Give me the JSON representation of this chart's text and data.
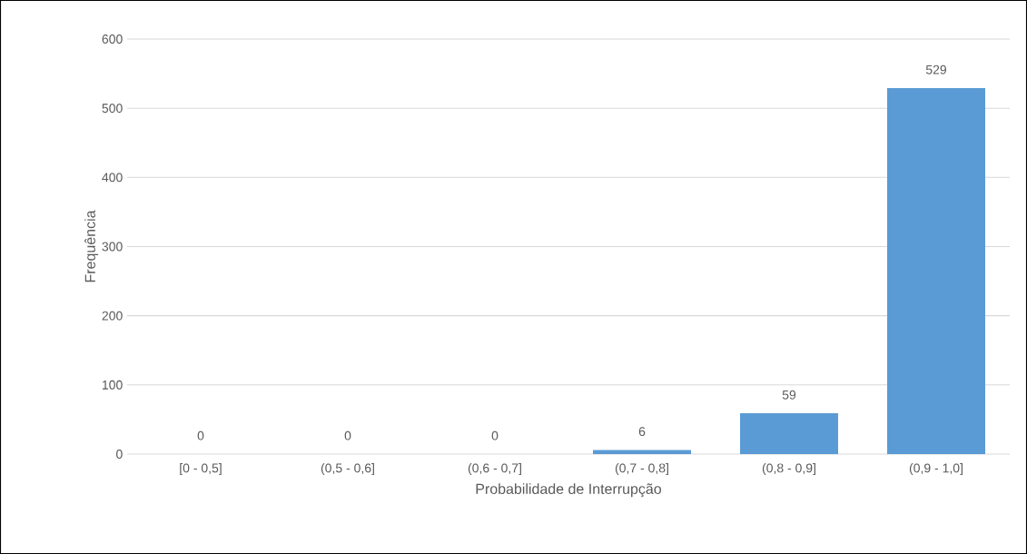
{
  "chart_data": {
    "type": "bar",
    "xlabel": "Probabilidade de Interrupção",
    "ylabel": "Frequência",
    "categories": [
      "[0 - 0,5]",
      "(0,5 - 0,6]",
      "(0,6 - 0,7]",
      "(0,7 - 0,8]",
      "(0,8 - 0,9]",
      "(0,9 - 1,0]"
    ],
    "values": [
      0,
      0,
      0,
      6,
      59,
      529
    ],
    "color": "#5b9bd5",
    "ylim": [
      0,
      600
    ],
    "yticks": [
      0,
      100,
      200,
      300,
      400,
      500,
      600
    ],
    "grid": "y",
    "data_labels": true
  }
}
